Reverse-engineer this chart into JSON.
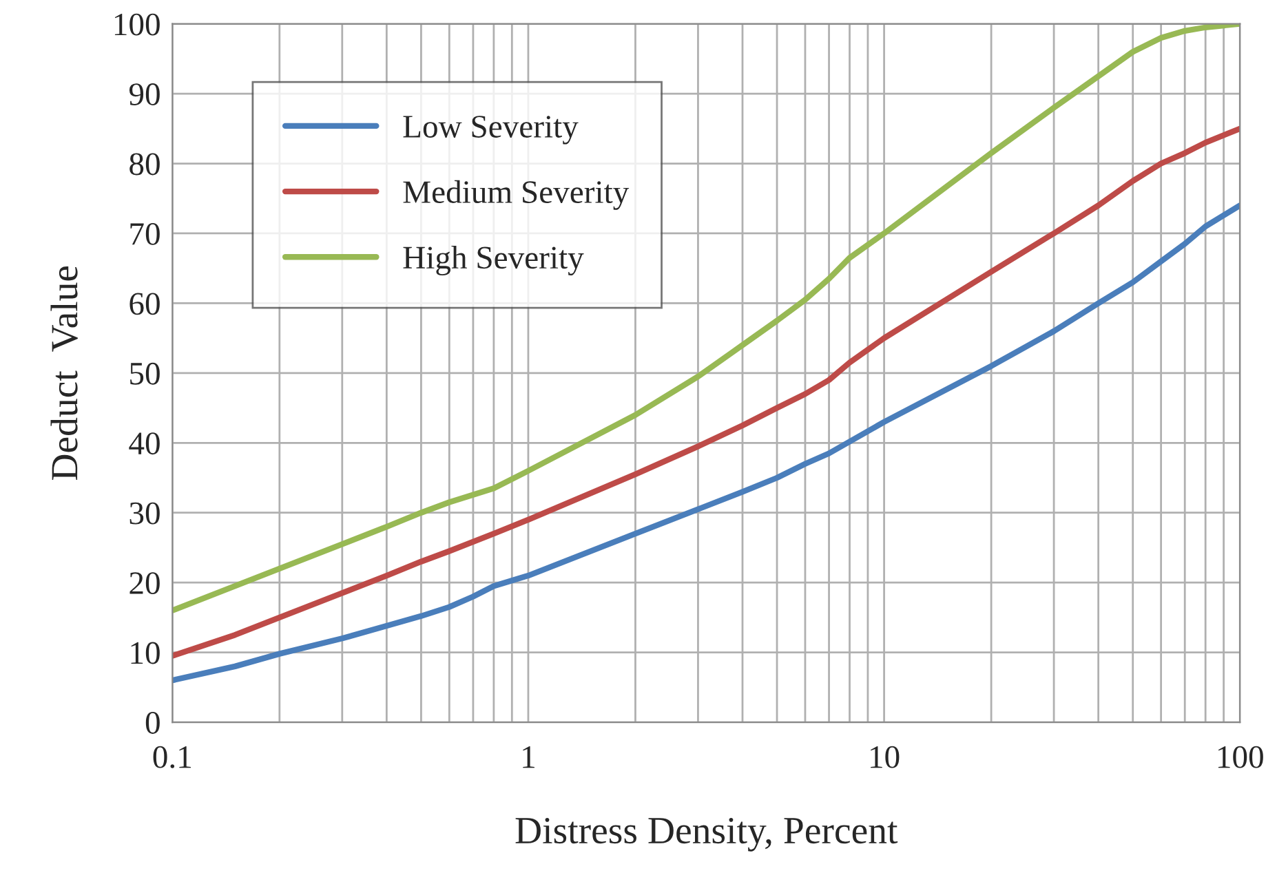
{
  "chart_data": {
    "type": "line",
    "xlabel": "Distress Density, Percent",
    "ylabel": "Deduct  Value",
    "log": "x",
    "grid": true,
    "legend": "top left",
    "marker": "none",
    "line_style": "solid",
    "xlim": [
      0.1,
      100
    ],
    "ylim": [
      0,
      100
    ],
    "xticks": [
      {
        "value": 0.1,
        "label": "0.1"
      },
      {
        "value": 0.2,
        "label": null
      },
      {
        "value": 0.3,
        "label": null
      },
      {
        "value": 0.4,
        "label": null
      },
      {
        "value": 0.5,
        "label": null
      },
      {
        "value": 0.6,
        "label": null
      },
      {
        "value": 0.7,
        "label": null
      },
      {
        "value": 0.8,
        "label": null
      },
      {
        "value": 0.9,
        "label": null
      },
      1,
      {
        "value": 2,
        "label": null
      },
      {
        "value": 3,
        "label": null
      },
      {
        "value": 4,
        "label": null
      },
      {
        "value": 5,
        "label": null
      },
      {
        "value": 6,
        "label": null
      },
      {
        "value": 7,
        "label": null
      },
      {
        "value": 8,
        "label": null
      },
      {
        "value": 9,
        "label": null
      },
      10,
      {
        "value": 20,
        "label": null
      },
      {
        "value": 30,
        "label": null
      },
      {
        "value": 40,
        "label": null
      },
      {
        "value": 50,
        "label": null
      },
      {
        "value": 60,
        "label": null
      },
      {
        "value": 70,
        "label": null
      },
      {
        "value": 80,
        "label": null
      },
      {
        "value": 90,
        "label": null
      },
      100
    ],
    "yticks": [
      0,
      10,
      20,
      30,
      40,
      50,
      60,
      70,
      80,
      90,
      100
    ],
    "series": [
      {
        "name": "Low Severity",
        "color": "#4a7ebb",
        "x": [
          0.1,
          0.15,
          0.2,
          0.3,
          0.4,
          0.5,
          0.6,
          0.7,
          0.8,
          1,
          2,
          3,
          4,
          5,
          6,
          7,
          10,
          20,
          30,
          40,
          50,
          60,
          70,
          80,
          100
        ],
        "values": [
          6,
          8,
          9.8,
          12,
          13.8,
          15.2,
          16.5,
          18,
          19.5,
          21,
          27,
          30.5,
          33,
          35,
          37,
          38.5,
          43,
          51,
          56,
          60,
          63,
          66,
          68.5,
          71,
          74
        ]
      },
      {
        "name": "Medium Severity",
        "color": "#be4b48",
        "x": [
          0.1,
          0.15,
          0.2,
          0.3,
          0.4,
          0.5,
          0.6,
          0.8,
          1,
          2,
          3,
          4,
          5,
          6,
          7,
          8,
          10,
          20,
          30,
          40,
          50,
          60,
          70,
          80,
          100
        ],
        "values": [
          9.5,
          12.5,
          15,
          18.5,
          21,
          23,
          24.5,
          27,
          29,
          35.5,
          39.5,
          42.5,
          45,
          47,
          49,
          51.5,
          55,
          64.5,
          70,
          74,
          77.5,
          80,
          81.5,
          83,
          85
        ]
      },
      {
        "name": "High Severity",
        "color": "#98b954",
        "x": [
          0.1,
          0.15,
          0.2,
          0.3,
          0.4,
          0.5,
          0.6,
          0.8,
          1,
          2,
          3,
          4,
          5,
          6,
          7,
          8,
          10,
          20,
          30,
          40,
          50,
          60,
          70,
          80,
          100
        ],
        "values": [
          16,
          19.5,
          22,
          25.5,
          28,
          30,
          31.5,
          33.5,
          36,
          44,
          49.5,
          54,
          57.5,
          60.5,
          63.5,
          66.5,
          70,
          81.5,
          88,
          92.5,
          96,
          98,
          99,
          99.5,
          100
        ]
      }
    ]
  }
}
